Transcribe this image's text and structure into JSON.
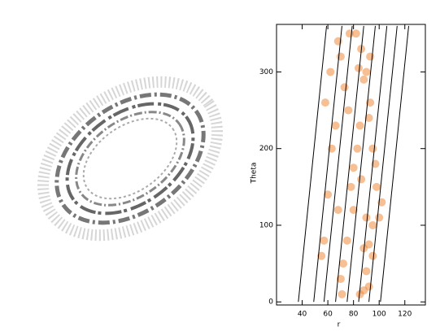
{
  "chart_data": {
    "type": "scatter",
    "xlabel": "r",
    "ylabel": "Theta",
    "xlim": [
      20,
      136
    ],
    "ylim": [
      -4,
      362
    ],
    "xticks": [
      40,
      60,
      80,
      100,
      120
    ],
    "yticks": [
      0,
      100,
      200,
      300
    ],
    "color": "#f08a3c",
    "x": [
      88,
      92,
      85,
      90,
      95,
      88,
      92,
      90,
      70,
      72,
      75,
      68,
      55,
      57,
      60,
      63,
      78,
      80,
      83,
      85,
      92,
      93,
      95,
      97,
      88,
      90,
      84,
      86,
      82,
      93,
      76,
      73,
      70,
      68,
      62,
      58,
      66,
      100,
      102,
      98,
      80,
      86,
      77,
      71,
      95
    ],
    "y": [
      15,
      20,
      10,
      40,
      60,
      70,
      75,
      110,
      30,
      50,
      80,
      120,
      60,
      80,
      140,
      200,
      150,
      175,
      200,
      230,
      240,
      260,
      200,
      180,
      290,
      300,
      305,
      330,
      350,
      320,
      250,
      280,
      320,
      340,
      300,
      260,
      230,
      110,
      130,
      150,
      120,
      160,
      350,
      10,
      100
    ],
    "lines": [
      {
        "x": [
          37,
          59
        ],
        "y": [
          0,
          360
        ]
      },
      {
        "x": [
          49,
          71
        ],
        "y": [
          0,
          360
        ]
      },
      {
        "x": [
          57,
          79
        ],
        "y": [
          0,
          360
        ]
      },
      {
        "x": [
          66,
          88
        ],
        "y": [
          0,
          360
        ]
      },
      {
        "x": [
          75,
          97
        ],
        "y": [
          0,
          360
        ]
      },
      {
        "x": [
          84,
          106
        ],
        "y": [
          0,
          360
        ]
      },
      {
        "x": [
          92,
          114
        ],
        "y": [
          0,
          360
        ]
      },
      {
        "x": [
          101,
          123
        ],
        "y": [
          0,
          360
        ]
      }
    ]
  }
}
